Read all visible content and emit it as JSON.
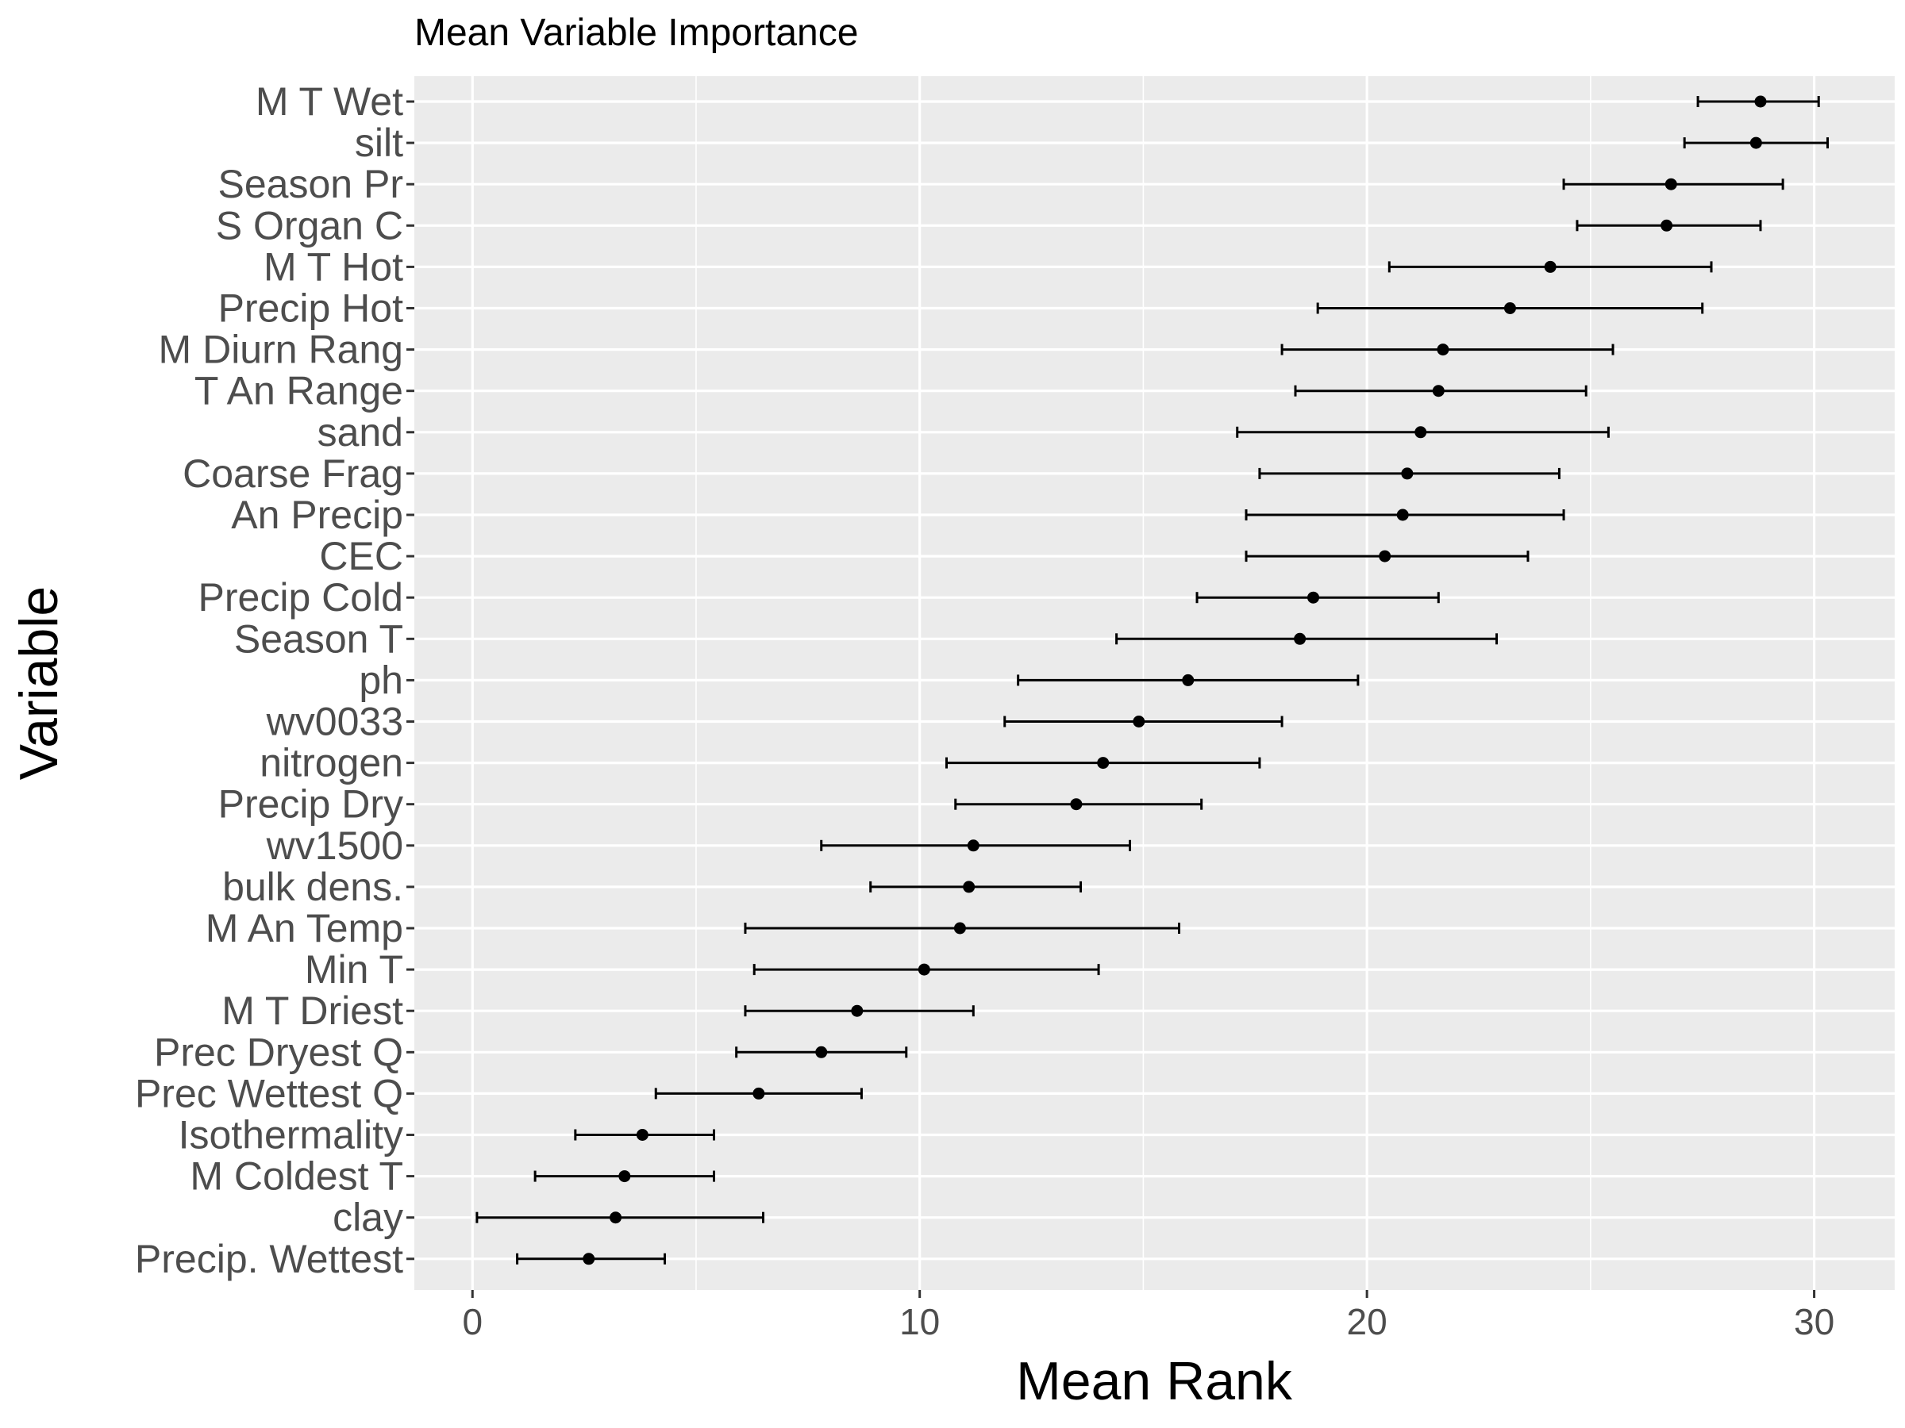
{
  "chart_data": {
    "type": "scatter",
    "subtype": "point-with-errorbars",
    "title": "Mean Variable Importance",
    "xlabel": "Mean Rank",
    "ylabel": "Variable",
    "xlim": [
      -1.3,
      31.8
    ],
    "xticks": [
      0,
      10,
      20,
      30
    ],
    "grid": true,
    "legend": "none",
    "categories": [
      "M T Wet",
      "silt",
      "Season Pr",
      "S Organ C",
      "M T Hot",
      "Precip Hot",
      "M Diurn Rang",
      "T An Range",
      "sand",
      "Coarse Frag",
      "An Precip",
      "CEC",
      "Precip Cold",
      "Season T",
      "ph",
      "wv0033",
      "nitrogen",
      "Precip Dry",
      "wv1500",
      "bulk dens.",
      "M An Temp",
      "Min T",
      "M T Driest",
      "Prec Dryest Q",
      "Prec Wettest Q",
      "Isothermality",
      "M Coldest T",
      "clay",
      "Precip. Wettest"
    ],
    "series": [
      {
        "values": [
          28.8,
          28.7,
          26.8,
          26.7,
          24.1,
          23.2,
          21.7,
          21.6,
          21.2,
          20.9,
          20.8,
          20.4,
          18.8,
          18.5,
          16.0,
          14.9,
          14.1,
          13.5,
          11.2,
          11.1,
          10.9,
          10.1,
          8.6,
          7.8,
          6.4,
          3.8,
          3.4,
          3.2,
          2.6
        ],
        "lower": [
          27.4,
          27.1,
          24.4,
          24.7,
          20.5,
          18.9,
          18.1,
          18.4,
          17.1,
          17.6,
          17.3,
          17.3,
          16.2,
          14.4,
          12.2,
          11.9,
          10.6,
          10.8,
          7.8,
          8.9,
          6.1,
          6.3,
          6.1,
          5.9,
          4.1,
          2.3,
          1.4,
          0.1,
          1.0
        ],
        "upper": [
          30.1,
          30.3,
          29.3,
          28.8,
          27.7,
          27.5,
          25.5,
          24.9,
          25.4,
          24.3,
          24.4,
          23.6,
          21.6,
          22.9,
          19.8,
          18.1,
          17.6,
          16.3,
          14.7,
          13.6,
          15.8,
          14.0,
          11.2,
          9.7,
          8.7,
          5.4,
          5.4,
          6.5,
          4.3
        ]
      }
    ],
    "colors": {
      "panel_background": "#ebebeb",
      "grid": "#ffffff",
      "point": "#000000",
      "errorbar": "#000000",
      "tick_label": "#4d4d4d"
    }
  }
}
